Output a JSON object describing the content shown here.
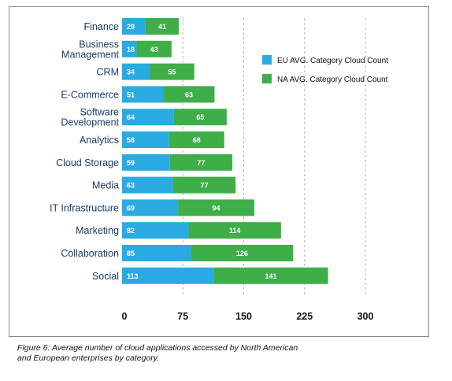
{
  "chart_data": {
    "type": "bar",
    "stacked": true,
    "orientation": "horizontal",
    "categories": [
      [
        "Finance"
      ],
      [
        "Business",
        "Management"
      ],
      [
        "CRM"
      ],
      [
        "E-Commerce"
      ],
      [
        "Software",
        "Development"
      ],
      [
        "Analytics"
      ],
      [
        "Cloud Storage"
      ],
      [
        "Media"
      ],
      [
        "IT Infrastructure"
      ],
      [
        "Marketing"
      ],
      [
        "Collaboration"
      ],
      [
        "Social"
      ]
    ],
    "series": [
      {
        "name": "EU AVG. Category Cloud Count",
        "color": "#29abe2",
        "values": [
          29,
          18,
          34,
          51,
          64,
          58,
          59,
          63,
          69,
          82,
          85,
          113
        ]
      },
      {
        "name": "NA AVG. Category Cloud Count",
        "color": "#3fae49",
        "values": [
          41,
          43,
          55,
          63,
          65,
          68,
          77,
          77,
          94,
          114,
          126,
          141
        ]
      }
    ],
    "x_ticks": [
      0,
      75,
      150,
      225,
      300
    ],
    "xlim": [
      0,
      300
    ],
    "grid": "vertical dashed",
    "legend_position": "top-right"
  },
  "caption": [
    "Figure 6: Average number of cloud applications accessed by North American",
    "and European enterprises by category."
  ]
}
